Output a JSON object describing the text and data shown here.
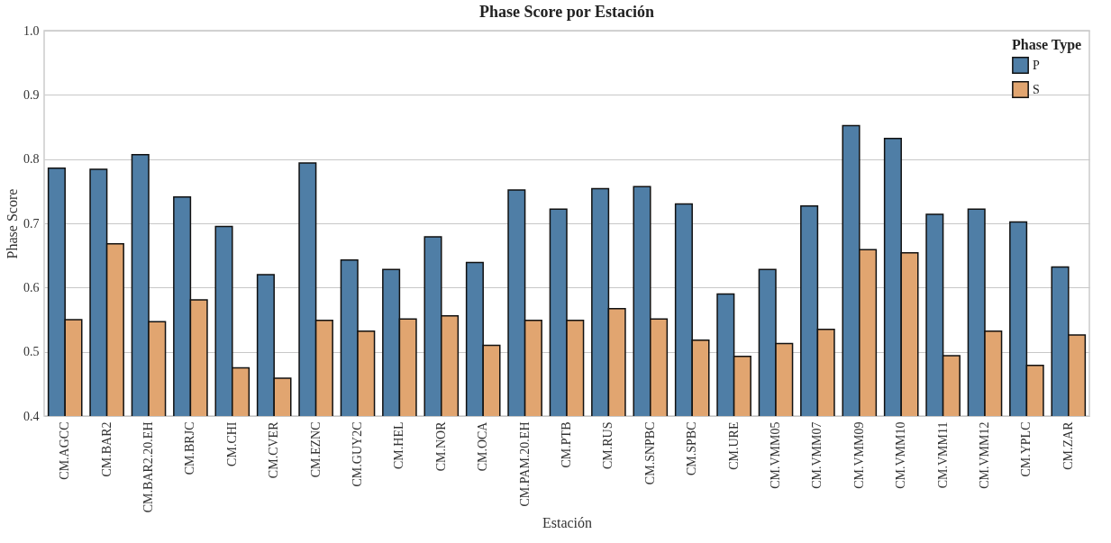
{
  "chart_data": {
    "type": "bar",
    "title": "Phase Score por Estación",
    "xlabel": "Estación",
    "ylabel": "Phase Score",
    "legend_title": "Phase Type",
    "categories": [
      "CM.AGCC",
      "CM.BAR2",
      "CM.BAR2.20.EH",
      "CM.BRJC",
      "CM.CHI",
      "CM.CVER",
      "CM.EZNC",
      "CM.GUY2C",
      "CM.HEL",
      "CM.NOR",
      "CM.OCA",
      "CM.PAM.20.EH",
      "CM.PTB",
      "CM.RUS",
      "CM.SNPBC",
      "CM.SPBC",
      "CM.URE",
      "CM.VMM05",
      "CM.VMM07",
      "CM.VMM09",
      "CM.VMM10",
      "CM.VMM11",
      "CM.VMM12",
      "CM.YPLC",
      "CM.ZAR"
    ],
    "series": [
      {
        "name": "P",
        "color": "#4f7ea6",
        "values": [
          0.786,
          0.784,
          0.807,
          0.741,
          0.695,
          0.62,
          0.794,
          0.643,
          0.628,
          0.679,
          0.639,
          0.752,
          0.722,
          0.754,
          0.757,
          0.73,
          0.59,
          0.628,
          0.727,
          0.852,
          0.832,
          0.714,
          0.722,
          0.702,
          0.632
        ]
      },
      {
        "name": "S",
        "color": "#e1a570",
        "values": [
          0.55,
          0.668,
          0.547,
          0.581,
          0.475,
          0.459,
          0.549,
          0.532,
          0.551,
          0.556,
          0.51,
          0.549,
          0.549,
          0.567,
          0.551,
          0.518,
          0.493,
          0.513,
          0.535,
          0.659,
          0.654,
          0.494,
          0.532,
          0.479,
          0.526
        ]
      }
    ],
    "ylim": [
      0.4,
      1.0
    ],
    "yticks": [
      0.4,
      0.5,
      0.6,
      0.7,
      0.8,
      0.9,
      {
        "value": 1,
        "label": "1.0"
      }
    ],
    "grid": "y",
    "legend": "top right"
  }
}
